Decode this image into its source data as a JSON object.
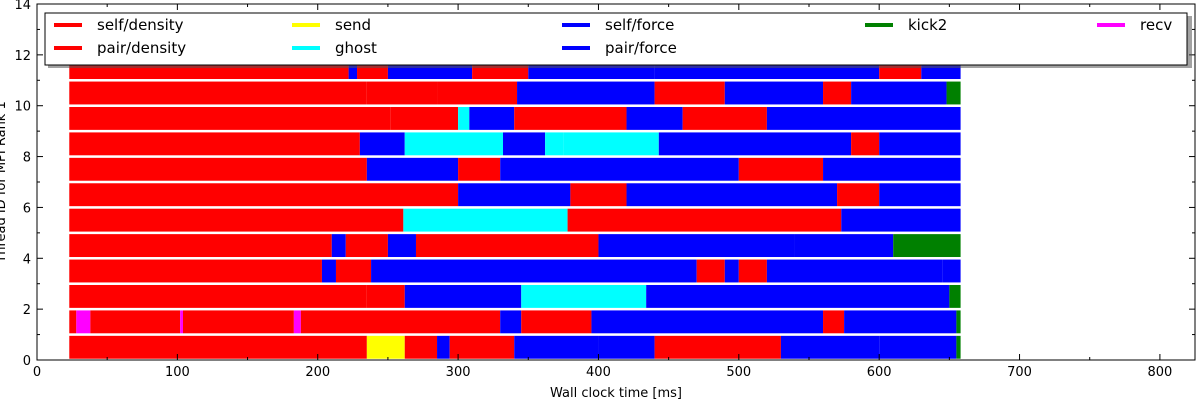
{
  "chart_data": {
    "type": "bar",
    "xlabel": "Wall clock time [ms]",
    "ylabel": "Thread ID for MPI Rank 1",
    "xlim": [
      0,
      825
    ],
    "ylim": [
      0,
      14
    ],
    "xticks": [
      "0",
      "100",
      "200",
      "300",
      "400",
      "500",
      "600",
      "700",
      "800"
    ],
    "yticks": [
      "0",
      "2",
      "4",
      "6",
      "8",
      "10",
      "12",
      "14"
    ],
    "grid": false,
    "legend_placement": "top",
    "series": [
      {
        "name": "self/density",
        "color": "#ff0000"
      },
      {
        "name": "pair/density",
        "color": "#ff0000"
      },
      {
        "name": "send",
        "color": "#ffff00"
      },
      {
        "name": "ghost",
        "color": "#00ffff"
      },
      {
        "name": "self/force",
        "color": "#0000ff"
      },
      {
        "name": "pair/force",
        "color": "#0000ff"
      },
      {
        "name": "kick2",
        "color": "#008000"
      },
      {
        "name": "recv",
        "color": "#ff00ff"
      }
    ],
    "threads": [
      {
        "id": 0,
        "segments": [
          [
            "pair/density",
            23,
            235
          ],
          [
            "send",
            235,
            262
          ],
          [
            "pair/density",
            262,
            285
          ],
          [
            "self/force",
            285,
            294
          ],
          [
            "pair/density",
            294,
            340
          ],
          [
            "self/force",
            340,
            400
          ],
          [
            "pair/force",
            400,
            440
          ],
          [
            "pair/density",
            440,
            530
          ],
          [
            "self/force",
            530,
            600
          ],
          [
            "pair/force",
            600,
            655
          ],
          [
            "kick2",
            655,
            658
          ]
        ]
      },
      {
        "id": 1,
        "segments": [
          [
            "pair/density",
            23,
            28
          ],
          [
            "recv",
            28,
            38
          ],
          [
            "pair/density",
            38,
            102
          ],
          [
            "recv",
            102,
            104
          ],
          [
            "pair/density",
            104,
            183
          ],
          [
            "recv",
            183,
            188
          ],
          [
            "pair/density",
            188,
            330
          ],
          [
            "self/force",
            330,
            345
          ],
          [
            "pair/density",
            345,
            395
          ],
          [
            "self/force",
            395,
            560
          ],
          [
            "pair/density",
            560,
            575
          ],
          [
            "pair/force",
            575,
            655
          ],
          [
            "kick2",
            655,
            658
          ]
        ]
      },
      {
        "id": 2,
        "segments": [
          [
            "pair/density",
            23,
            235
          ],
          [
            "pair/density",
            235,
            262
          ],
          [
            "self/force",
            262,
            345
          ],
          [
            "ghost",
            345,
            434
          ],
          [
            "self/force",
            434,
            650
          ],
          [
            "kick2",
            650,
            658
          ]
        ]
      },
      {
        "id": 3,
        "segments": [
          [
            "pair/density",
            23,
            203
          ],
          [
            "self/force",
            203,
            213
          ],
          [
            "pair/density",
            213,
            238
          ],
          [
            "self/force",
            238,
            470
          ],
          [
            "pair/density",
            470,
            490
          ],
          [
            "self/force",
            490,
            500
          ],
          [
            "pair/density",
            500,
            520
          ],
          [
            "pair/force",
            520,
            645
          ],
          [
            "self/force",
            645,
            658
          ]
        ]
      },
      {
        "id": 4,
        "segments": [
          [
            "pair/density",
            23,
            210
          ],
          [
            "self/force",
            210,
            220
          ],
          [
            "pair/density",
            220,
            250
          ],
          [
            "self/force",
            250,
            270
          ],
          [
            "pair/density",
            270,
            400
          ],
          [
            "pair/force",
            400,
            540
          ],
          [
            "self/force",
            540,
            610
          ],
          [
            "kick2",
            610,
            658
          ]
        ]
      },
      {
        "id": 5,
        "segments": [
          [
            "pair/density",
            23,
            261
          ],
          [
            "ghost",
            261,
            378
          ],
          [
            "pair/density",
            378,
            573
          ],
          [
            "self/force",
            573,
            658
          ]
        ]
      },
      {
        "id": 6,
        "segments": [
          [
            "pair/density",
            23,
            300
          ],
          [
            "self/force",
            300,
            380
          ],
          [
            "pair/density",
            380,
            420
          ],
          [
            "self/force",
            420,
            570
          ],
          [
            "pair/density",
            570,
            600
          ],
          [
            "pair/force",
            600,
            658
          ]
        ]
      },
      {
        "id": 7,
        "segments": [
          [
            "pair/density",
            23,
            235
          ],
          [
            "self/force",
            235,
            300
          ],
          [
            "pair/density",
            300,
            330
          ],
          [
            "pair/force",
            330,
            500
          ],
          [
            "pair/density",
            500,
            560
          ],
          [
            "self/force",
            560,
            658
          ]
        ]
      },
      {
        "id": 8,
        "segments": [
          [
            "pair/density",
            23,
            230
          ],
          [
            "self/force",
            230,
            262
          ],
          [
            "ghost",
            262,
            332
          ],
          [
            "self/force",
            332,
            362
          ],
          [
            "ghost",
            362,
            375
          ],
          [
            "ghost",
            375,
            443
          ],
          [
            "self/force",
            443,
            580
          ],
          [
            "pair/density",
            580,
            600
          ],
          [
            "pair/force",
            600,
            658
          ]
        ]
      },
      {
        "id": 9,
        "segments": [
          [
            "pair/density",
            23,
            252
          ],
          [
            "pair/density",
            252,
            300
          ],
          [
            "ghost",
            300,
            308
          ],
          [
            "self/force",
            308,
            340
          ],
          [
            "pair/density",
            340,
            420
          ],
          [
            "self/force",
            420,
            460
          ],
          [
            "pair/density",
            460,
            520
          ],
          [
            "pair/force",
            520,
            658
          ]
        ]
      },
      {
        "id": 10,
        "segments": [
          [
            "pair/density",
            23,
            235
          ],
          [
            "pair/density",
            235,
            285
          ],
          [
            "pair/density",
            285,
            342
          ],
          [
            "self/force",
            342,
            440
          ],
          [
            "pair/density",
            440,
            490
          ],
          [
            "self/force",
            490,
            560
          ],
          [
            "pair/density",
            560,
            580
          ],
          [
            "pair/force",
            580,
            648
          ],
          [
            "kick2",
            648,
            658
          ]
        ]
      },
      {
        "id": 11,
        "segments": [
          [
            "pair/density",
            23,
            222
          ],
          [
            "self/force",
            222,
            228
          ],
          [
            "pair/density",
            228,
            250
          ],
          [
            "self/force",
            250,
            310
          ],
          [
            "pair/density",
            310,
            350
          ],
          [
            "self/force",
            350,
            440
          ],
          [
            "pair/force",
            440,
            600
          ],
          [
            "pair/density",
            600,
            630
          ],
          [
            "self/force",
            630,
            658
          ]
        ]
      }
    ]
  }
}
